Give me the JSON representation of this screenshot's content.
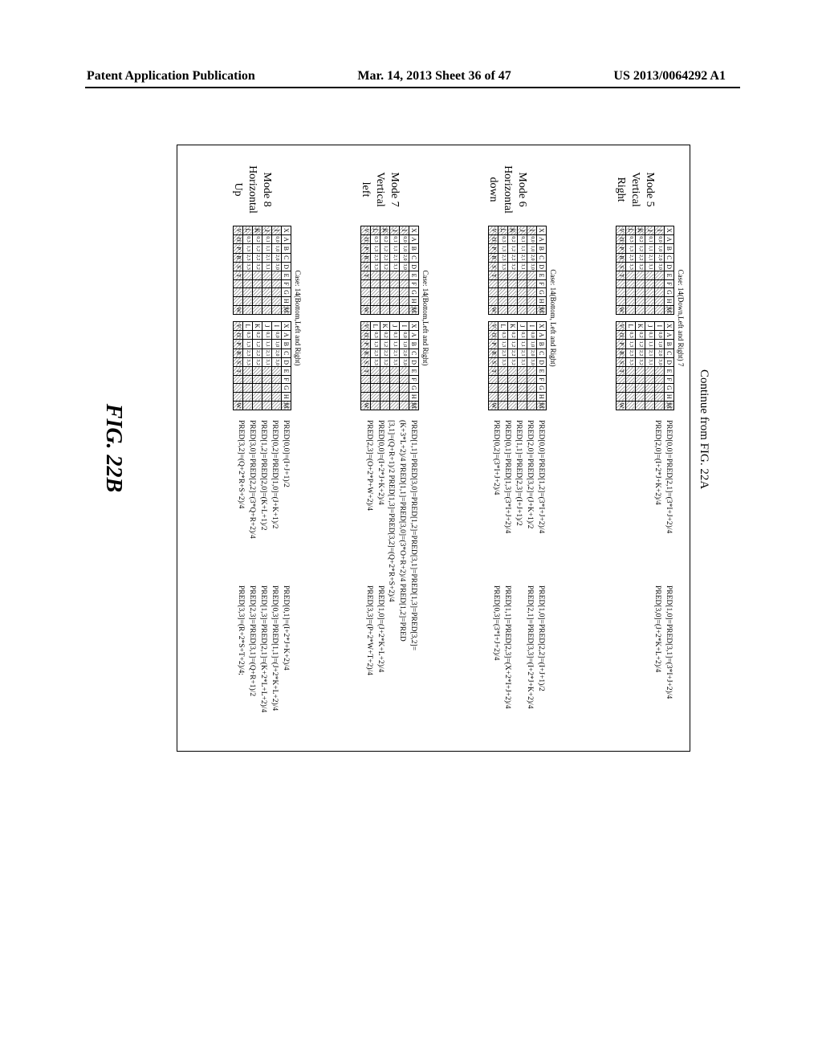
{
  "header": {
    "left": "Patent Application Publication",
    "center": "Mar. 14, 2013  Sheet 36 of 47",
    "right": "US 2013/0064292 A1"
  },
  "continue": "Continue from FIG. 22A",
  "caption": "FIG. 22B",
  "grid_headers": [
    "X",
    "A",
    "B",
    "C",
    "D",
    "E",
    "F",
    "G",
    "H"
  ],
  "grid_left_labels": [
    "I",
    "J",
    "K",
    "L",
    "V"
  ],
  "grid_right_labels": [
    "M",
    "",
    "",
    "",
    "W"
  ],
  "grid_cells": [
    "0,0",
    "1,0",
    "2,0",
    "3,0",
    "0,1",
    "1,1",
    "2,1",
    "3,1",
    "0,2",
    "1,2",
    "2,2",
    "3,2",
    "0,3",
    "1,3",
    "2,3",
    "3,3"
  ],
  "grid_bottom": [
    "O",
    "P",
    "R",
    "S",
    "T"
  ],
  "modes": [
    {
      "label_lines": [
        "Mode 5",
        "Vertical",
        "Right"
      ],
      "case": "Case: 14(Down,Left and Right) 7",
      "formulas_left": [
        "PRED[0,0]=PRED[2,1]=(3*I+J+2)/4",
        "PRED[2,0]=(I+2*J+K+2)/4"
      ],
      "formulas_right": [
        "PRED[1,0]=PRED[3,1]=(3*I+J+2)/4",
        "PRED[3,0]=(J+2*K+L+2)/4"
      ]
    },
    {
      "label_lines": [
        "Mode 6",
        "Horizontal",
        "down"
      ],
      "case": "Case: 14(Bottom, Left and Right)",
      "formulas_left": [
        "PRED[0,0]=PRED[1,2]=(3*I+J+2)/4",
        "PRED[2,0]=PRED[3,2]=(J+K+1)/2",
        "PRED[1,1]=PRED[2,3]=(I+J+1)/2",
        "",
        "PRED[0,1]=PRED[1,3]=(3*I+J+2)/4",
        "PRED[0,2]=(3*I+J+2)/4"
      ],
      "formulas_right": [
        "PRED[1,0]=PRED[2,2]=(I+J+1)/2",
        "PRED[2,1]=PRED[3,3]=(I+2*J+K+2)/4",
        "",
        "",
        "PRED[1,1]=PRED[2,3]=(X+2*I+J+2)/4",
        "PRED[0,3]=(3*I+J+2)/4"
      ]
    },
    {
      "label_lines": [
        "Mode 7",
        "Vertical",
        "left"
      ],
      "case": "Case: 14(Bottom,Left and Right)",
      "formulas_left": [
        "PRED[1,1]=PRED[3,0]=PRED[1,2]=PRED[3,1]=PRED[1,3]=PRED[3,2]=",
        "(K+3*L+2)/4    PRED[1,1]=PRED[3,0]=(3*O+R+2)/4    PRED[1,2]=PRED",
        "[3,1]=(Q+R+1)/2    PRED[1,3]=PRED[3,2]=(Q+2*R+S+2)/4",
        "PRED[0,0]=(I+2*J+K+2)/4",
        "PRED[2,3]=(O+2*P+W+2)/4"
      ],
      "formulas_right": [
        "",
        "",
        "",
        "PRED[1,0]=(J+2*K+L+2)/4",
        "PRED[3,3]=(P+2*W+T+2)/4"
      ]
    },
    {
      "label_lines": [
        "Mode 8",
        "Horizontal",
        "Up"
      ],
      "case": "Case: 14(Bottom,Left and Right)",
      "formulas_left": [
        "PRED[0,0]=(I+J+1)/2",
        "PRED[0,2]=PRED[1,0]=(J+K+1)/2",
        "PRED[1,2]=PRED[2,0]=(K+L+1)/2",
        "",
        "PRED[3,0]=PRED[2,2]=(3*Q+R+2)/4",
        "PRED[3,2]=(Q+2*R+S+2)/4"
      ],
      "formulas_right": [
        "PRED[0,1]=(I+2*J+K+2)/4",
        "PRED[0,3]=PRED[1,1]=(J+2*K+L+2)/4",
        "PRED[1,3]=PRED[2,1]=(K+2*L+L+2)/4",
        "",
        "PRED[2,3]=PRED[3,1]=(Q+R+1)/2",
        "PRED[3,3]=(R+2*S+T+2)/4;"
      ]
    }
  ]
}
